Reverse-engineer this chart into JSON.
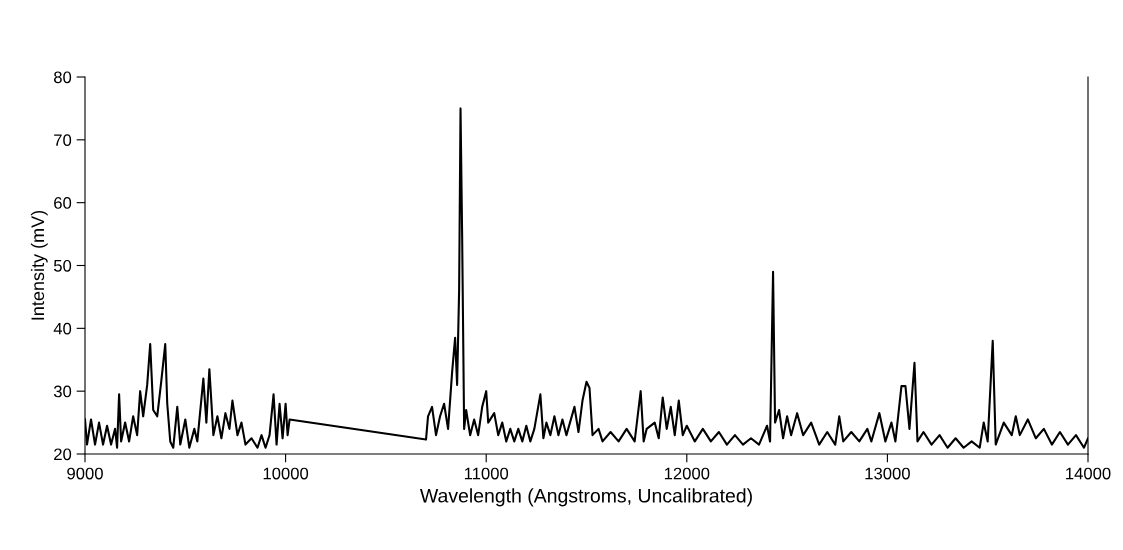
{
  "chart_data": {
    "type": "line",
    "xlabel": "Wavelength (Angstroms, Uncalibrated)",
    "ylabel": "Intensity (mV)",
    "xlim": [
      9000,
      14000
    ],
    "xticks": [
      9000,
      10000,
      11000,
      12000,
      13000,
      14000
    ],
    "ylim": [
      20,
      80
    ],
    "yticks": [
      20,
      30,
      40,
      50,
      60,
      70,
      80
    ],
    "grid": false,
    "legend": false,
    "marker": "none",
    "line_style": "solid",
    "series": [
      {
        "color": "#000000",
        "x": [
          9000,
          9010,
          9030,
          9050,
          9070,
          9090,
          9110,
          9130,
          9150,
          9160,
          9170,
          9180,
          9200,
          9220,
          9240,
          9260,
          9275,
          9290,
          9310,
          9325,
          9340,
          9360,
          9380,
          9400,
          9410,
          9425,
          9440,
          9460,
          9475,
          9500,
          9520,
          9545,
          9560,
          9590,
          9605,
          9620,
          9640,
          9660,
          9680,
          9700,
          9720,
          9735,
          9760,
          9780,
          9800,
          9830,
          9860,
          9880,
          9900,
          9920,
          9940,
          9955,
          9970,
          9985,
          10000,
          10010,
          10020,
          10700,
          10710,
          10730,
          10750,
          10770,
          10790,
          10810,
          10830,
          10845,
          10855,
          10865,
          10872,
          10880,
          10890,
          10900,
          10920,
          10940,
          10960,
          10980,
          11000,
          11010,
          11040,
          11060,
          11080,
          11100,
          11120,
          11140,
          11160,
          11180,
          11200,
          11220,
          11240,
          11270,
          11285,
          11300,
          11320,
          11340,
          11360,
          11380,
          11400,
          11440,
          11460,
          11480,
          11500,
          11515,
          11530,
          11560,
          11580,
          11620,
          11660,
          11700,
          11740,
          11770,
          11785,
          11800,
          11840,
          11860,
          11880,
          11900,
          11920,
          11940,
          11960,
          11980,
          12000,
          12040,
          12080,
          12120,
          12160,
          12200,
          12240,
          12280,
          12320,
          12360,
          12400,
          12415,
          12430,
          12440,
          12460,
          12480,
          12500,
          12520,
          12550,
          12580,
          12620,
          12660,
          12700,
          12740,
          12760,
          12780,
          12820,
          12860,
          12900,
          12920,
          12960,
          12990,
          13020,
          13040,
          13070,
          13090,
          13110,
          13135,
          13150,
          13180,
          13220,
          13260,
          13300,
          13340,
          13380,
          13420,
          13460,
          13480,
          13500,
          13525,
          13540,
          13580,
          13620,
          13640,
          13660,
          13700,
          13740,
          13780,
          13820,
          13860,
          13900,
          13940,
          13980,
          14000
        ],
        "values": [
          25.5,
          21.5,
          25.5,
          21.5,
          25,
          21.5,
          24.5,
          21.5,
          24,
          21,
          29.5,
          22,
          25,
          22,
          26,
          23,
          30,
          26,
          31,
          37.5,
          27,
          26,
          31.5,
          37.5,
          28,
          22,
          21,
          27.5,
          21.5,
          25.5,
          21,
          24,
          22,
          32,
          25,
          33.5,
          23,
          26,
          22.5,
          26.5,
          24,
          28.5,
          23,
          25,
          21.5,
          22.5,
          21,
          23,
          21,
          23,
          29.5,
          21.5,
          28,
          22.5,
          28,
          23,
          25.5,
          22.3,
          26,
          27.5,
          23,
          26,
          28,
          24,
          33,
          38.5,
          31,
          46,
          75,
          55,
          24,
          27,
          23,
          25.5,
          23,
          27.5,
          30,
          25,
          26.5,
          23,
          25,
          22,
          24,
          22,
          24,
          22,
          24.5,
          22,
          24,
          29.5,
          22.5,
          25,
          23,
          26,
          23,
          25.5,
          23,
          27.5,
          23.5,
          28.5,
          31.5,
          30.5,
          23,
          24,
          22,
          23.5,
          22,
          24,
          22,
          30,
          22,
          24,
          25,
          22.5,
          29,
          24,
          27.5,
          23,
          28.5,
          23,
          24.5,
          22,
          24,
          22,
          23.5,
          21.5,
          23,
          21.5,
          22.5,
          21.5,
          24.5,
          22,
          49,
          25,
          27,
          22.5,
          26,
          23,
          26.5,
          23,
          25,
          21.5,
          23.5,
          21.5,
          26,
          22,
          23.5,
          22,
          24,
          22,
          26.5,
          22,
          25,
          22,
          30.8,
          30.8,
          24,
          34.5,
          22,
          23.5,
          21.5,
          23,
          21,
          22.5,
          21,
          22,
          21,
          25,
          22,
          38,
          21.5,
          25,
          23,
          26,
          23,
          25.5,
          22.5,
          24,
          21.5,
          23.5,
          21.5,
          23,
          21,
          22.5
        ]
      }
    ]
  }
}
